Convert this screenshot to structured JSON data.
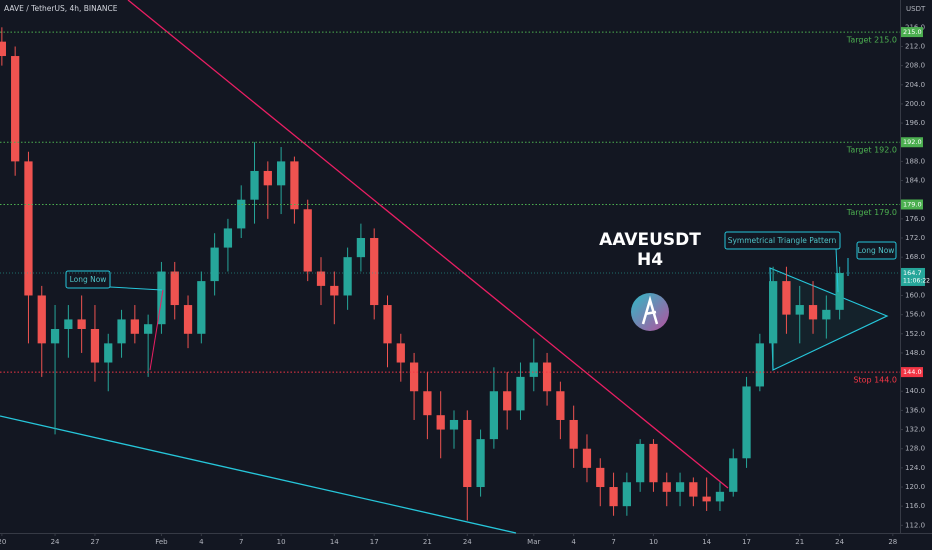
{
  "header": "AAVE / TetherUS, 4h, BINANCE",
  "chart_data": {
    "type": "candlestick",
    "title": "AAVEUSDT",
    "subtitle": "H4",
    "currency": "USDT",
    "up_color": "#26a69a",
    "down_color": "#ef5350",
    "x": [
      0,
      1,
      2,
      3,
      4,
      5,
      6,
      7,
      8,
      9,
      10,
      11,
      12,
      13,
      14,
      15,
      16,
      17,
      18,
      19,
      20,
      21,
      22,
      23,
      24,
      25,
      26,
      27,
      28,
      29,
      30,
      31,
      32,
      33,
      34,
      35,
      36,
      37,
      38,
      39,
      40,
      41,
      42,
      43,
      44,
      45,
      46,
      47,
      48,
      49,
      50,
      51,
      52,
      53,
      54,
      55,
      56,
      57,
      58,
      59,
      60,
      61,
      62,
      63
    ],
    "open": [
      213,
      210,
      188,
      160,
      150,
      153,
      155,
      153,
      146,
      150,
      155,
      152,
      154,
      165,
      158,
      152,
      163,
      170,
      174,
      180,
      186,
      183,
      188,
      178,
      165,
      162,
      160,
      168,
      172,
      158,
      150,
      146,
      140,
      135,
      132,
      134,
      120,
      130,
      140,
      136,
      143,
      146,
      140,
      134,
      128,
      124,
      120,
      116,
      121,
      129,
      121,
      119,
      121,
      118,
      117,
      119,
      126,
      141,
      150,
      163,
      156,
      158,
      155,
      157
    ],
    "high": [
      216,
      212,
      190,
      162,
      158,
      158,
      160,
      158,
      152,
      157,
      158,
      156,
      167,
      167,
      160,
      165,
      173,
      176,
      183,
      192,
      188,
      191,
      189,
      180,
      168,
      165,
      170,
      175,
      174,
      160,
      152,
      148,
      144,
      140,
      136,
      136,
      132,
      145,
      144,
      146,
      151,
      148,
      142,
      137,
      131,
      126,
      123,
      123,
      130,
      130,
      123,
      123,
      122,
      122,
      121,
      128,
      143,
      152,
      166,
      166,
      162,
      163,
      160,
      166
    ],
    "low": [
      208,
      185,
      150,
      143,
      131,
      147,
      148,
      142,
      140,
      147,
      150,
      143,
      152,
      155,
      149,
      150,
      160,
      165,
      172,
      175,
      176,
      177,
      175,
      163,
      158,
      154,
      157,
      165,
      155,
      145,
      142,
      134,
      130,
      126,
      128,
      113,
      118,
      128,
      132,
      134,
      140,
      137,
      130,
      124,
      121,
      116,
      114,
      114,
      119,
      119,
      116,
      116,
      116,
      115,
      115,
      118,
      124,
      140,
      146,
      152,
      150,
      152,
      151,
      155
    ],
    "close": [
      210,
      188,
      160,
      150,
      153,
      155,
      153,
      146,
      150,
      155,
      152,
      154,
      165,
      158,
      152,
      163,
      170,
      174,
      180,
      186,
      183,
      188,
      178,
      165,
      162,
      160,
      168,
      172,
      158,
      150,
      146,
      140,
      135,
      132,
      134,
      120,
      130,
      140,
      136,
      143,
      146,
      140,
      134,
      128,
      124,
      120,
      116,
      121,
      129,
      121,
      119,
      121,
      118,
      117,
      119,
      126,
      141,
      150,
      163,
      156,
      158,
      155,
      157,
      164.7
    ],
    "xlim": [
      -0.14,
      67.54
    ],
    "ylim": [
      110.4,
      221.7
    ],
    "xticks": [
      {
        "value": 0,
        "label": "20"
      },
      {
        "value": 4,
        "label": "24"
      },
      {
        "value": 7,
        "label": "27"
      },
      {
        "value": 12,
        "label": "Feb"
      },
      {
        "value": 15,
        "label": "4"
      },
      {
        "value": 18,
        "label": "7"
      },
      {
        "value": 21,
        "label": "10"
      },
      {
        "value": 25,
        "label": "14"
      },
      {
        "value": 28,
        "label": "17"
      },
      {
        "value": 32,
        "label": "21"
      },
      {
        "value": 35,
        "label": "24"
      },
      {
        "value": 40,
        "label": "Mar"
      },
      {
        "value": 43,
        "label": "4"
      },
      {
        "value": 46,
        "label": "7"
      },
      {
        "value": 49,
        "label": "10"
      },
      {
        "value": 53,
        "label": "14"
      },
      {
        "value": 56,
        "label": "17"
      },
      {
        "value": 60,
        "label": "21"
      },
      {
        "value": 63,
        "label": "24"
      },
      {
        "value": 67,
        "label": "28"
      }
    ],
    "yticks": [
      {
        "value": 112,
        "label": "112.0"
      },
      {
        "value": 116,
        "label": "116.0"
      },
      {
        "value": 120,
        "label": "120.0"
      },
      {
        "value": 124,
        "label": "124.0"
      },
      {
        "value": 128,
        "label": "128.0"
      },
      {
        "value": 132,
        "label": "132.0"
      },
      {
        "value": 136,
        "label": "136.0"
      },
      {
        "value": 140,
        "label": "140.0"
      },
      {
        "value": 148,
        "label": "148.0"
      },
      {
        "value": 152,
        "label": "152.0"
      },
      {
        "value": 156,
        "label": "156.0"
      },
      {
        "value": 160,
        "label": "160.0"
      },
      {
        "value": 168,
        "label": "168.0"
      },
      {
        "value": 172,
        "label": "172.0"
      },
      {
        "value": 176,
        "label": "176.0"
      },
      {
        "value": 184,
        "label": "184.0"
      },
      {
        "value": 188,
        "label": "188.0"
      },
      {
        "value": 196,
        "label": "196.0"
      },
      {
        "value": 200,
        "label": "200.0"
      },
      {
        "value": 204,
        "label": "204.0"
      },
      {
        "value": 208,
        "label": "208.0"
      },
      {
        "value": 212,
        "label": "212.0"
      },
      {
        "value": 216,
        "label": "216.0"
      }
    ],
    "levels": [
      {
        "label": "Target 215.0",
        "axis_label": "215.0",
        "value": 215,
        "color": "#4caf50"
      },
      {
        "label": "Target 192.0",
        "axis_label": "192.0",
        "value": 192,
        "color": "#4caf50"
      },
      {
        "label": "Target 179.0",
        "axis_label": "179.0",
        "value": 179,
        "color": "#4caf50"
      },
      {
        "label": "Stop 144.0",
        "axis_label": "144.0",
        "value": 144,
        "color": "#f23645"
      }
    ],
    "last_price": {
      "value": 164.7,
      "countdown": "11:06:22"
    },
    "annotations": [
      "Long Now",
      "Long Now",
      "Symmetrical Triangle Pattern"
    ]
  }
}
